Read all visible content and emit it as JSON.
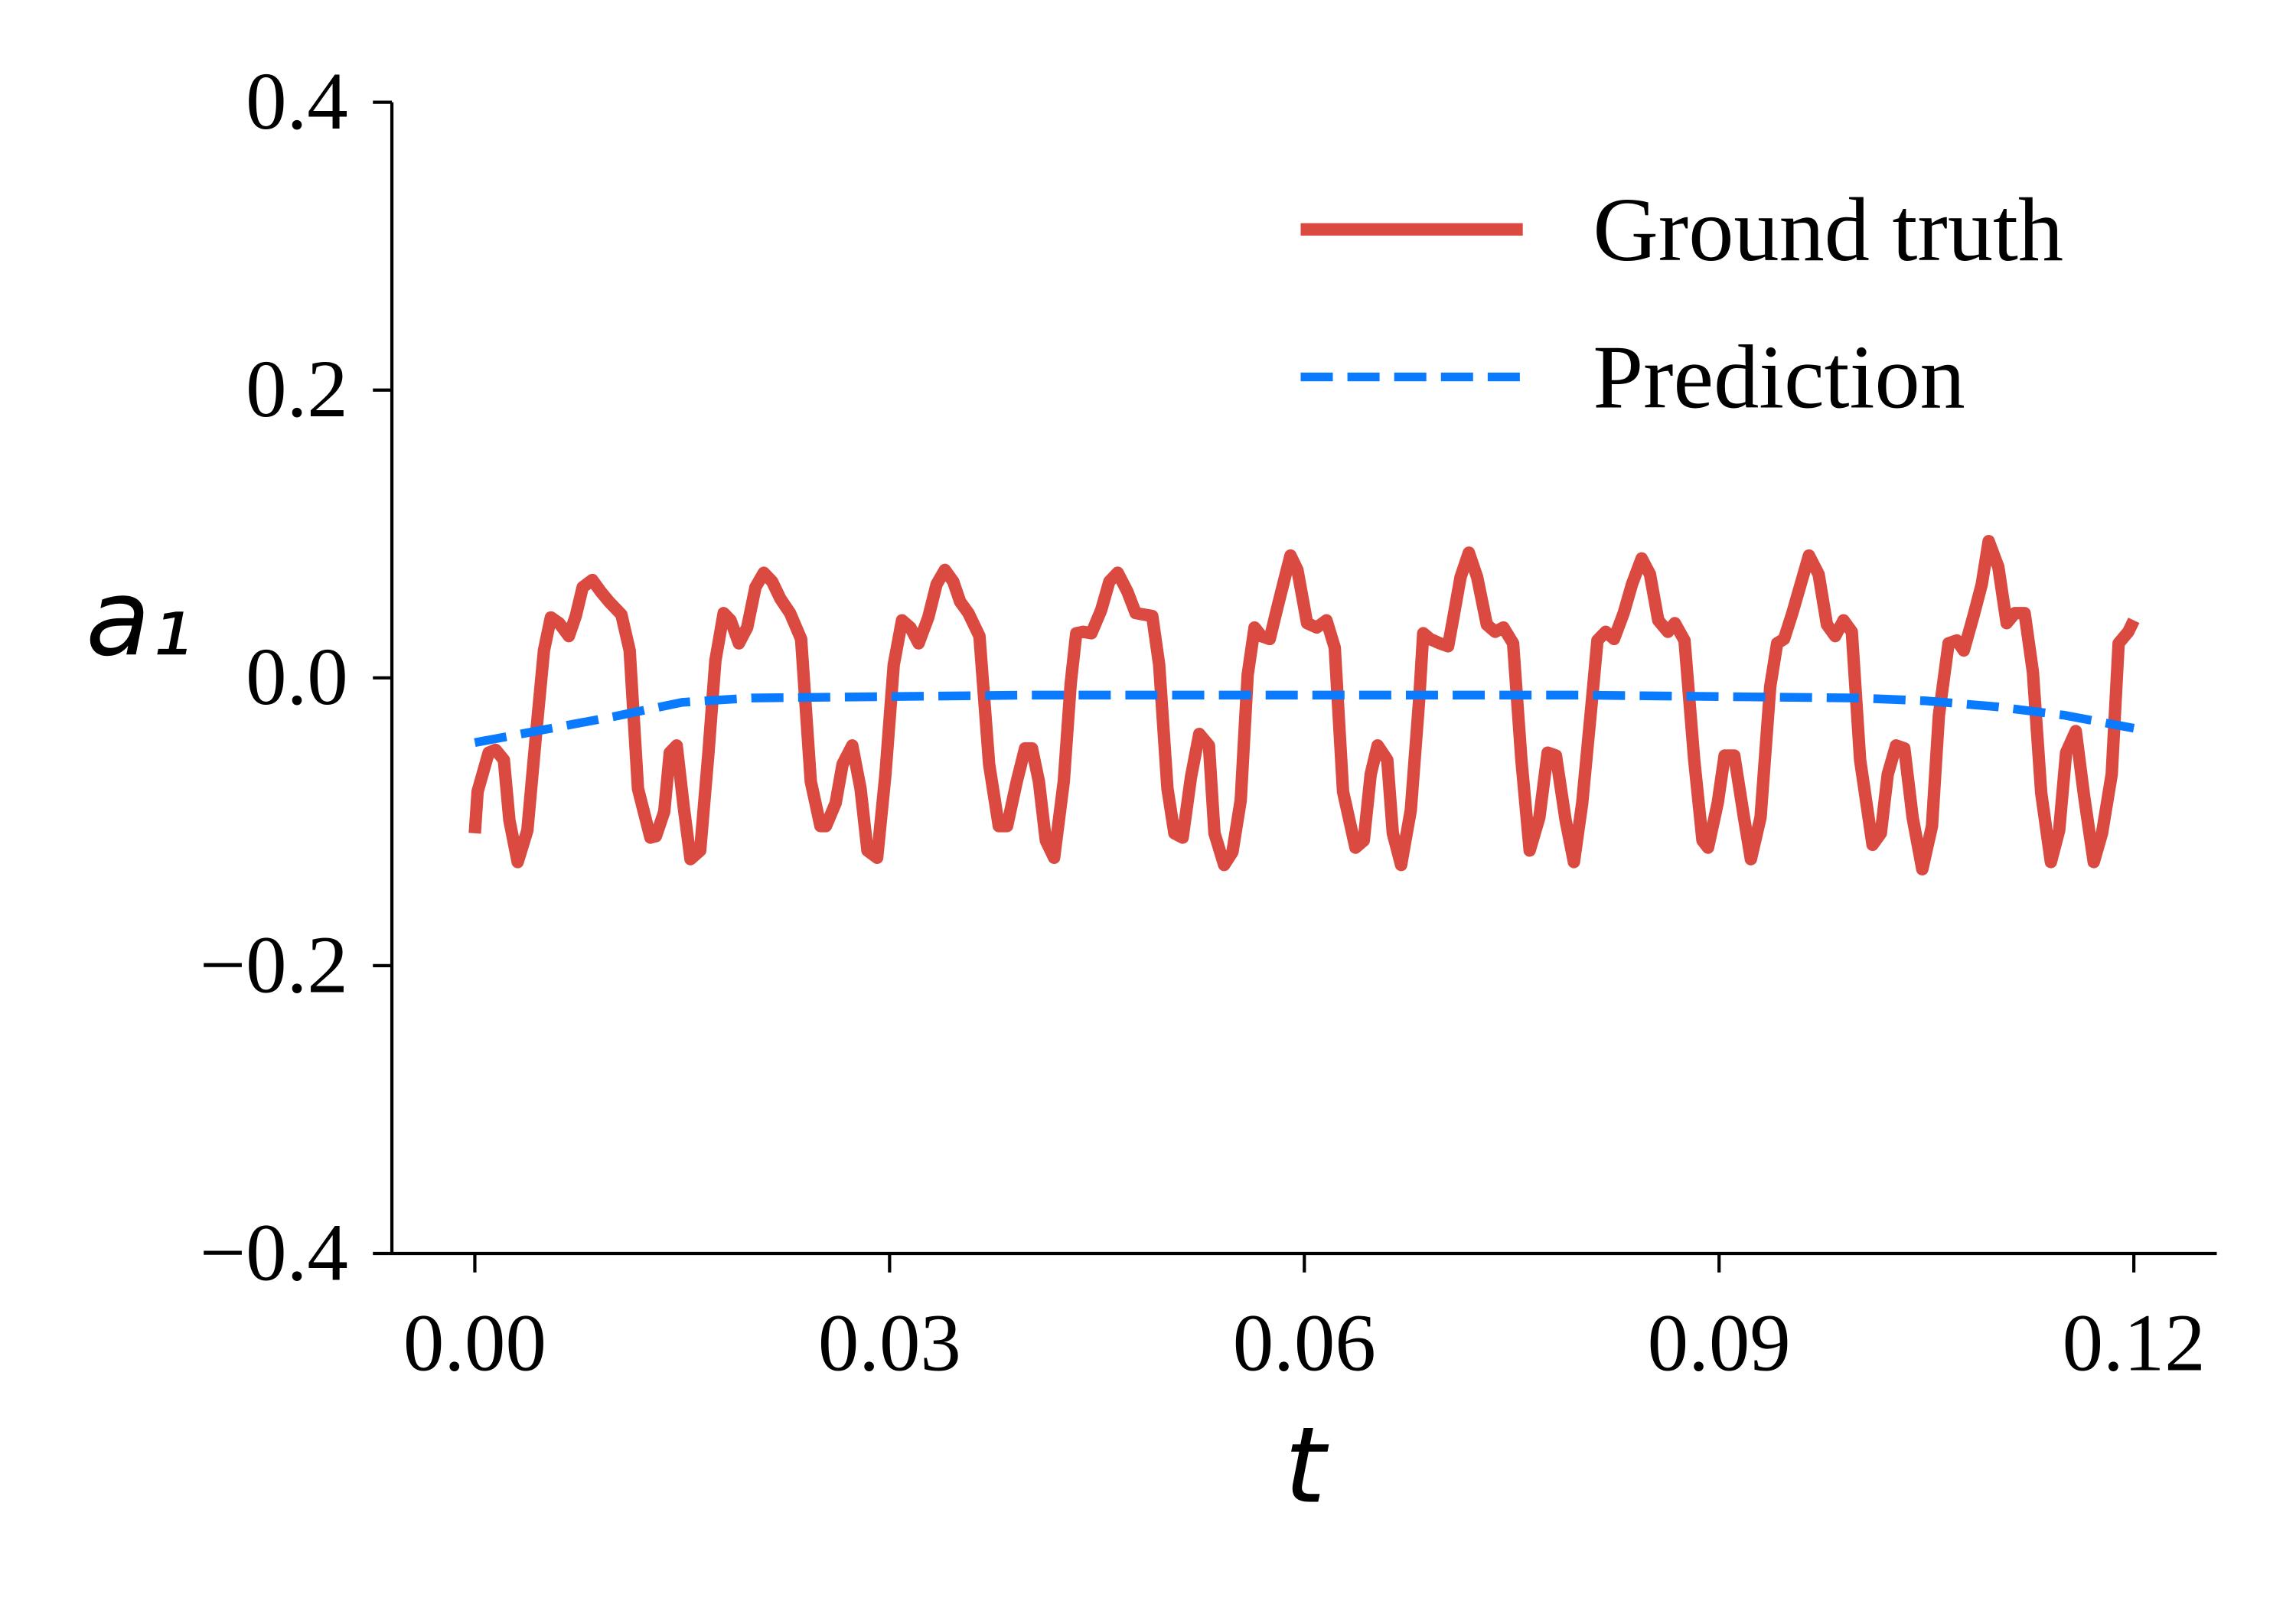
{
  "chart_data": {
    "type": "line",
    "xlabel": "t",
    "ylabel": "a₁",
    "xlim": [
      -0.006,
      0.126
    ],
    "ylim": [
      -0.4,
      0.4
    ],
    "xticks": [
      {
        "value": 0,
        "label": "0.00"
      },
      0.03,
      0.06,
      0.09,
      0.12
    ],
    "yticks": [
      {
        "value": -0.4,
        "label": "−0.4"
      },
      {
        "value": -0.2,
        "label": "−0.2"
      },
      {
        "value": 0,
        "label": "0.0"
      },
      0.2,
      0.4
    ],
    "grid": false,
    "legend": "upper right",
    "series": [
      {
        "name": "Ground truth",
        "color": "#db4a40",
        "dash": false,
        "x": [
          0,
          0.0002,
          0.001,
          0.0015,
          0.0021,
          0.0025,
          0.0031,
          0.0038,
          0.0044,
          0.005,
          0.0055,
          0.0061,
          0.0068,
          0.0073,
          0.0078,
          0.0085,
          0.0091,
          0.0097,
          0.0106,
          0.0112,
          0.0118,
          0.0127,
          0.0131,
          0.0137,
          0.0141,
          0.0146,
          0.0151,
          0.0156,
          0.0163,
          0.0169,
          0.0174,
          0.018,
          0.0185,
          0.0191,
          0.0197,
          0.0203,
          0.0209,
          0.0215,
          0.0221,
          0.0228,
          0.0236,
          0.0243,
          0.025,
          0.0254,
          0.0261,
          0.0266,
          0.0273,
          0.0279,
          0.0284,
          0.0291,
          0.0297,
          0.0303,
          0.0309,
          0.0315,
          0.0321,
          0.0328,
          0.0334,
          0.034,
          0.0346,
          0.0351,
          0.0357,
          0.0365,
          0.0372,
          0.0379,
          0.0385,
          0.0392,
          0.0398,
          0.0403,
          0.0408,
          0.0413,
          0.0419,
          0.0426,
          0.0431,
          0.0435,
          0.044,
          0.0446,
          0.0453,
          0.0459,
          0.0465,
          0.0472,
          0.0478,
          0.049,
          0.0495,
          0.0501,
          0.0506,
          0.0512,
          0.0518,
          0.0524,
          0.0531,
          0.0535,
          0.0542,
          0.0548,
          0.0554,
          0.0559,
          0.0564,
          0.0569,
          0.0575,
          0.058,
          0.0586,
          0.059,
          0.0595,
          0.0602,
          0.0609,
          0.0616,
          0.0622,
          0.0628,
          0.0637,
          0.0643,
          0.0648,
          0.0653,
          0.066,
          0.0664,
          0.067,
          0.0677,
          0.0683,
          0.0686,
          0.0691,
          0.0698,
          0.0704,
          0.0708,
          0.0713,
          0.0719,
          0.0725,
          0.0732,
          0.0738,
          0.0744,
          0.0751,
          0.0757,
          0.0763,
          0.077,
          0.0776,
          0.0782,
          0.0789,
          0.0795,
          0.0801,
          0.0808,
          0.0812,
          0.0818,
          0.0824,
          0.0831,
          0.0837,
          0.0844,
          0.085,
          0.0856,
          0.0863,
          0.0868,
          0.0875,
          0.0882,
          0.0888,
          0.0892,
          0.0899,
          0.0904,
          0.0911,
          0.0918,
          0.0923,
          0.093,
          0.0937,
          0.0942,
          0.0947,
          0.0953,
          0.0959,
          0.0965,
          0.0972,
          0.0978,
          0.0984,
          0.099,
          0.0996,
          0.1002,
          0.1011,
          0.1017,
          0.1022,
          0.1028,
          0.1034,
          0.104,
          0.1047,
          0.1054,
          0.1059,
          0.1066,
          0.1072,
          0.1077,
          0.1084,
          0.109,
          0.1095,
          0.1102,
          0.1108,
          0.1114,
          0.1121,
          0.1127,
          0.1133,
          0.114,
          0.1146,
          0.1151,
          0.1158,
          0.1164,
          0.1171,
          0.1177,
          0.1184,
          0.1189,
          0.1196,
          0.12
        ],
        "values": [
          -0.108,
          -0.079,
          -0.052,
          -0.05,
          -0.057,
          -0.099,
          -0.128,
          -0.106,
          -0.042,
          0.019,
          0.042,
          0.038,
          0.029,
          0.043,
          0.063,
          0.068,
          0.06,
          0.053,
          0.044,
          0.019,
          -0.077,
          -0.111,
          -0.11,
          -0.093,
          -0.052,
          -0.047,
          -0.089,
          -0.126,
          -0.12,
          -0.052,
          0.012,
          0.045,
          0.04,
          0.024,
          0.035,
          0.063,
          0.073,
          0.067,
          0.055,
          0.045,
          0.027,
          -0.072,
          -0.103,
          -0.103,
          -0.087,
          -0.06,
          -0.047,
          -0.077,
          -0.12,
          -0.125,
          -0.067,
          0.009,
          0.04,
          0.035,
          0.024,
          0.042,
          0.065,
          0.075,
          0.067,
          0.053,
          0.045,
          0.029,
          -0.06,
          -0.103,
          -0.103,
          -0.072,
          -0.049,
          -0.049,
          -0.072,
          -0.113,
          -0.125,
          -0.072,
          -0.004,
          0.031,
          0.032,
          0.031,
          0.047,
          0.067,
          0.073,
          0.06,
          0.045,
          0.043,
          0.009,
          -0.077,
          -0.108,
          -0.111,
          -0.069,
          -0.039,
          -0.047,
          -0.108,
          -0.13,
          -0.121,
          -0.085,
          0.002,
          0.035,
          0.029,
          0.027,
          0.047,
          0.07,
          0.085,
          0.075,
          0.038,
          0.035,
          0.04,
          0.021,
          -0.079,
          -0.118,
          -0.113,
          -0.067,
          -0.047,
          -0.057,
          -0.108,
          -0.13,
          -0.092,
          -0.016,
          0.031,
          0.027,
          0.024,
          0.022,
          0.043,
          0.07,
          0.087,
          0.07,
          0.037,
          0.032,
          0.035,
          0.024,
          -0.057,
          -0.12,
          -0.097,
          -0.052,
          -0.054,
          -0.099,
          -0.128,
          -0.087,
          -0.016,
          0.026,
          0.032,
          0.027,
          0.045,
          0.065,
          0.083,
          0.072,
          0.04,
          0.032,
          0.038,
          0.026,
          -0.057,
          -0.113,
          -0.118,
          -0.087,
          -0.054,
          -0.054,
          -0.097,
          -0.126,
          -0.097,
          -0.006,
          0.024,
          0.027,
          0.045,
          0.065,
          0.085,
          0.072,
          0.037,
          0.029,
          0.04,
          0.032,
          -0.057,
          -0.116,
          -0.108,
          -0.067,
          -0.047,
          -0.049,
          -0.097,
          -0.133,
          -0.103,
          -0.026,
          0.024,
          0.026,
          0.019,
          0.043,
          0.065,
          0.095,
          0.077,
          0.038,
          0.045,
          0.045,
          0.004,
          -0.08,
          -0.128,
          -0.106,
          -0.052,
          -0.037,
          -0.082,
          -0.128,
          -0.108,
          -0.067,
          0.024,
          0.032,
          0.04
        ]
      },
      {
        "name": "Prediction",
        "color": "#0a7bff",
        "dash": true,
        "x": [
          0,
          0.005,
          0.01,
          0.015,
          0.02,
          0.03,
          0.04,
          0.05,
          0.06,
          0.07,
          0.08,
          0.09,
          0.1,
          0.105,
          0.11,
          0.115,
          0.12
        ],
        "values": [
          -0.045,
          -0.036,
          -0.027,
          -0.017,
          -0.014,
          -0.013,
          -0.012,
          -0.012,
          -0.012,
          -0.012,
          -0.012,
          -0.013,
          -0.014,
          -0.016,
          -0.02,
          -0.026,
          -0.035
        ]
      }
    ]
  }
}
